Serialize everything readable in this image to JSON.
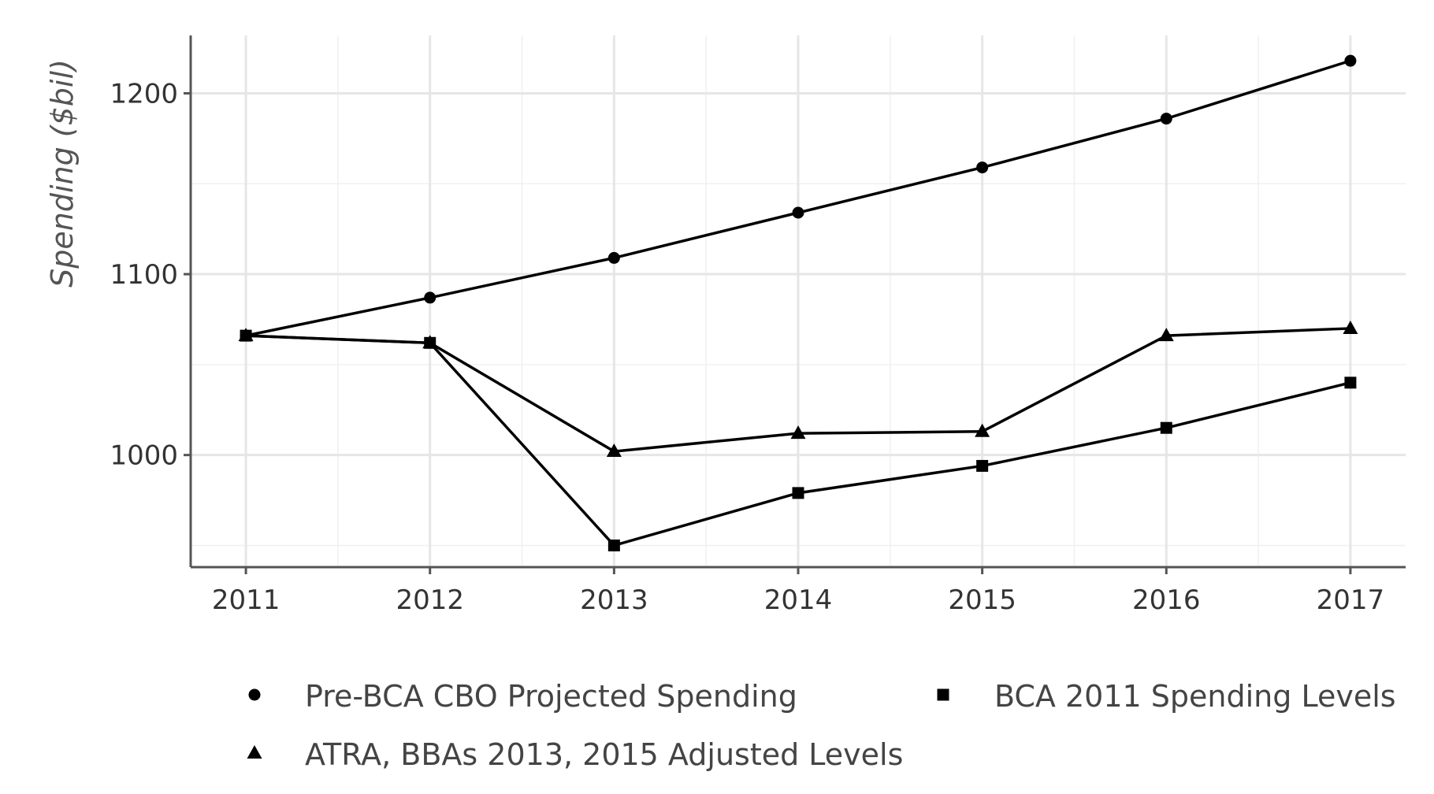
{
  "chart_data": {
    "type": "line",
    "ylabel": "Spending ($bil)",
    "xlabel": "",
    "x": [
      2011,
      2012,
      2013,
      2014,
      2015,
      2016,
      2017
    ],
    "xlim": [
      2010.7,
      2017.3
    ],
    "ylim": [
      938,
      1232
    ],
    "y_ticks": [
      1000,
      1100,
      1200
    ],
    "y_minor_ticks": [
      950,
      1050,
      1150
    ],
    "grid": true,
    "legend_position": "bottom",
    "series": [
      {
        "name": "Pre-BCA CBO Projected Spending",
        "marker": "circle",
        "values": [
          1066,
          1087,
          1109,
          1134,
          1159,
          1186,
          1218
        ]
      },
      {
        "name": "BCA 2011 Spending Levels",
        "marker": "square",
        "values": [
          1066,
          1062,
          950,
          979,
          994,
          1015,
          1040
        ]
      },
      {
        "name": "ATRA, BBAs 2013, 2015 Adjusted Levels",
        "marker": "triangle",
        "values": [
          1066,
          1062,
          1002,
          1012,
          1013,
          1066,
          1070
        ]
      }
    ]
  }
}
